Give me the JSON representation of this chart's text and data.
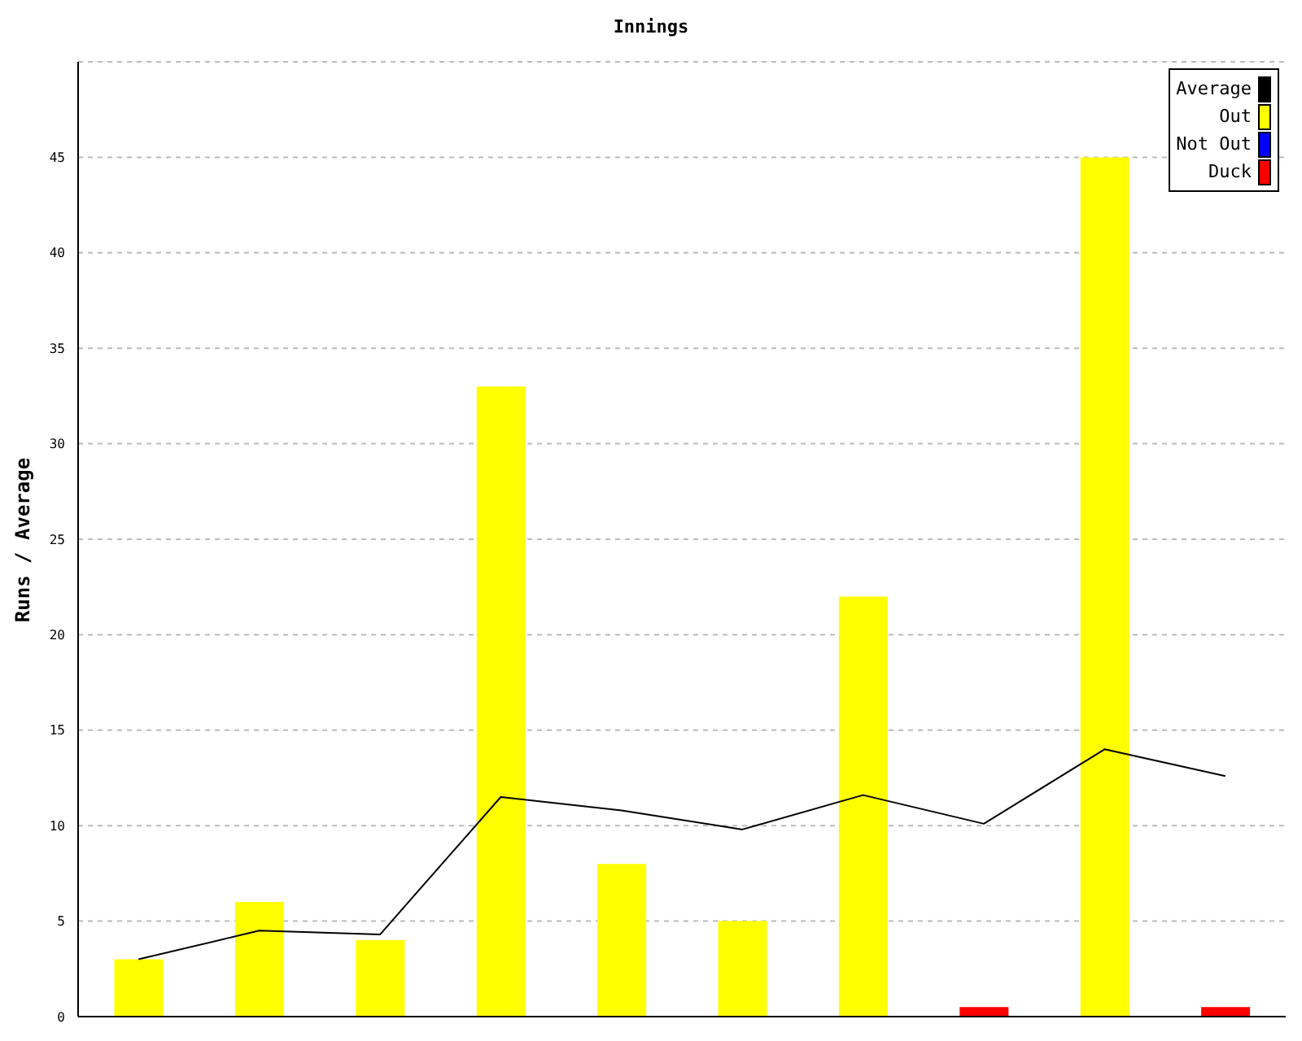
{
  "chart_data": {
    "type": "bar",
    "title": "Innings",
    "ylabel": "Runs / Average",
    "categories": [
      null,
      null,
      null,
      null,
      null,
      null,
      null,
      null,
      null,
      null
    ],
    "series": [
      {
        "name": "Average",
        "type": "line",
        "color": "#000000",
        "values": [
          3,
          4.5,
          4.3,
          11.5,
          10.8,
          9.8,
          11.6,
          10.1,
          14,
          12.6
        ]
      },
      {
        "name": "Out",
        "color": "#ffff00",
        "values": [
          3,
          6,
          4,
          33,
          8,
          5,
          22,
          null,
          45,
          null
        ]
      },
      {
        "name": "Not Out",
        "color": "#0000ff",
        "values": [
          null,
          null,
          null,
          null,
          null,
          null,
          null,
          null,
          null,
          null
        ]
      },
      {
        "name": "Duck",
        "color": "#ff0000",
        "values": [
          null,
          null,
          null,
          null,
          null,
          null,
          null,
          0.5,
          null,
          0.5
        ]
      }
    ],
    "stacked": true,
    "ylim": [
      0,
      50
    ],
    "yticks": [
      0,
      5,
      10,
      15,
      20,
      25,
      30,
      35,
      40,
      45
    ],
    "grid": "y",
    "legend": "top right",
    "marker": "none",
    "line_style": "solid"
  }
}
